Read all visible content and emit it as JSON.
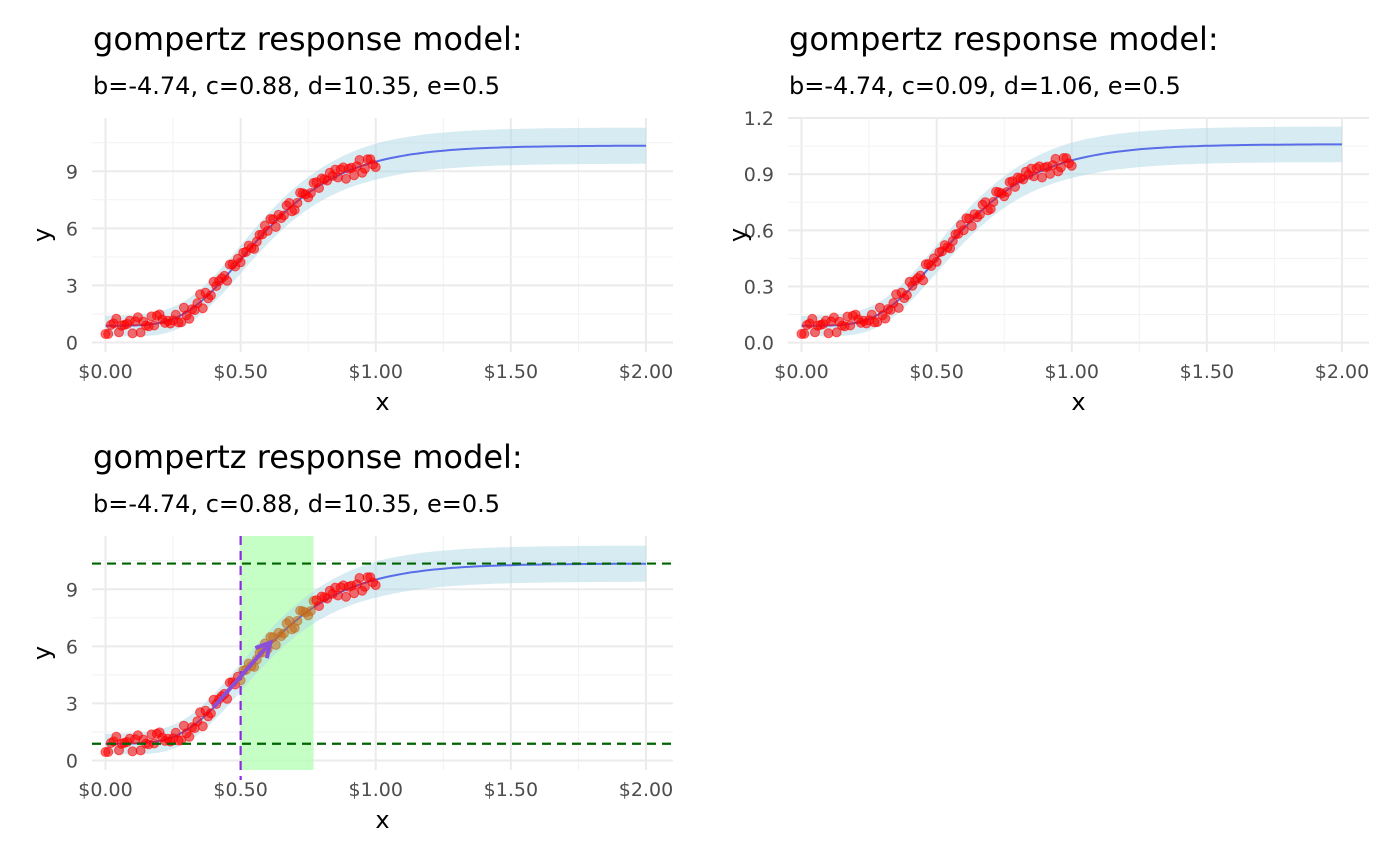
{
  "chart_data": [
    {
      "type": "scatter",
      "title": "gompertz response model:",
      "subtitle": "b=-4.74, c=0.88, d=10.35, e=0.5",
      "xlabel": "x",
      "ylabel": "y",
      "xlim": [
        -0.05,
        2.1
      ],
      "ylim": [
        -0.5,
        11.8
      ],
      "xticks": [
        0,
        0.5,
        1,
        1.5,
        2
      ],
      "xtick_labels": [
        "$0.00",
        "$0.50",
        "$1.00",
        "$1.50",
        "$2.00"
      ],
      "yticks": [
        0,
        3,
        6,
        9
      ],
      "ytick_labels": [
        "0",
        "3",
        "6",
        "9"
      ],
      "grid": true,
      "params": {
        "b": -4.74,
        "c": 0.88,
        "d": 10.35,
        "e": 0.5
      },
      "ribbon_halfwidth": 0.95,
      "x_range": [
        0,
        2
      ],
      "point_noise_amp": 0.45,
      "colors": {
        "points": "#ff0000",
        "curve": "#5a6de8",
        "ribbon": "#add8e6",
        "grid": "#ebebeb"
      },
      "annotations": null
    },
    {
      "type": "scatter",
      "title": "gompertz response model:",
      "subtitle": "b=-4.74, c=0.09, d=1.06, e=0.5",
      "xlabel": "x",
      "ylabel": "y",
      "xlim": [
        -0.05,
        2.1
      ],
      "ylim": [
        -0.05,
        1.2
      ],
      "xticks": [
        0,
        0.5,
        1,
        1.5,
        2
      ],
      "xtick_labels": [
        "$0.00",
        "$0.50",
        "$1.00",
        "$1.50",
        "$2.00"
      ],
      "yticks": [
        0,
        0.3,
        0.6,
        0.9,
        1.2
      ],
      "ytick_labels": [
        "0.0",
        "0.3",
        "0.6",
        "0.9",
        "1.2"
      ],
      "grid": true,
      "params": {
        "b": -4.74,
        "c": 0.09,
        "d": 1.06,
        "e": 0.5
      },
      "ribbon_halfwidth": 0.095,
      "x_range": [
        0,
        2
      ],
      "point_noise_amp": 0.045,
      "colors": {
        "points": "#ff0000",
        "curve": "#5a6de8",
        "ribbon": "#add8e6",
        "grid": "#ebebeb"
      },
      "annotations": null
    },
    {
      "type": "scatter",
      "title": "gompertz response model:",
      "subtitle": "b=-4.74, c=0.88, d=10.35, e=0.5",
      "xlabel": "x",
      "ylabel": "y",
      "xlim": [
        -0.05,
        2.1
      ],
      "ylim": [
        -0.5,
        11.8
      ],
      "xticks": [
        0,
        0.5,
        1,
        1.5,
        2
      ],
      "xtick_labels": [
        "$0.00",
        "$0.50",
        "$1.00",
        "$1.50",
        "$2.00"
      ],
      "yticks": [
        0,
        3,
        6,
        9
      ],
      "ytick_labels": [
        "0",
        "3",
        "6",
        "9"
      ],
      "grid": true,
      "params": {
        "b": -4.74,
        "c": 0.88,
        "d": 10.35,
        "e": 0.5
      },
      "ribbon_halfwidth": 0.95,
      "x_range": [
        0,
        2
      ],
      "point_noise_amp": 0.45,
      "colors": {
        "points": "#ff0000",
        "curve": "#5a6de8",
        "ribbon": "#add8e6",
        "grid": "#ebebeb"
      },
      "annotations": {
        "hlines": [
          {
            "y": 10.35,
            "color": "#006400"
          },
          {
            "y": 0.88,
            "color": "#006400"
          }
        ],
        "vline": {
          "x": 0.5,
          "color": "#8a2be2"
        },
        "band": {
          "x0": 0.5,
          "x1": 0.77,
          "color": "#b3ffb3"
        },
        "arrow": {
          "x0": 0.4,
          "y0": 2.8,
          "x1": 0.61,
          "y1": 6.2,
          "color": "#8a4fd8"
        },
        "highlight_range": [
          0.5,
          0.77
        ],
        "highlight_color": "#c46a1a"
      }
    }
  ]
}
